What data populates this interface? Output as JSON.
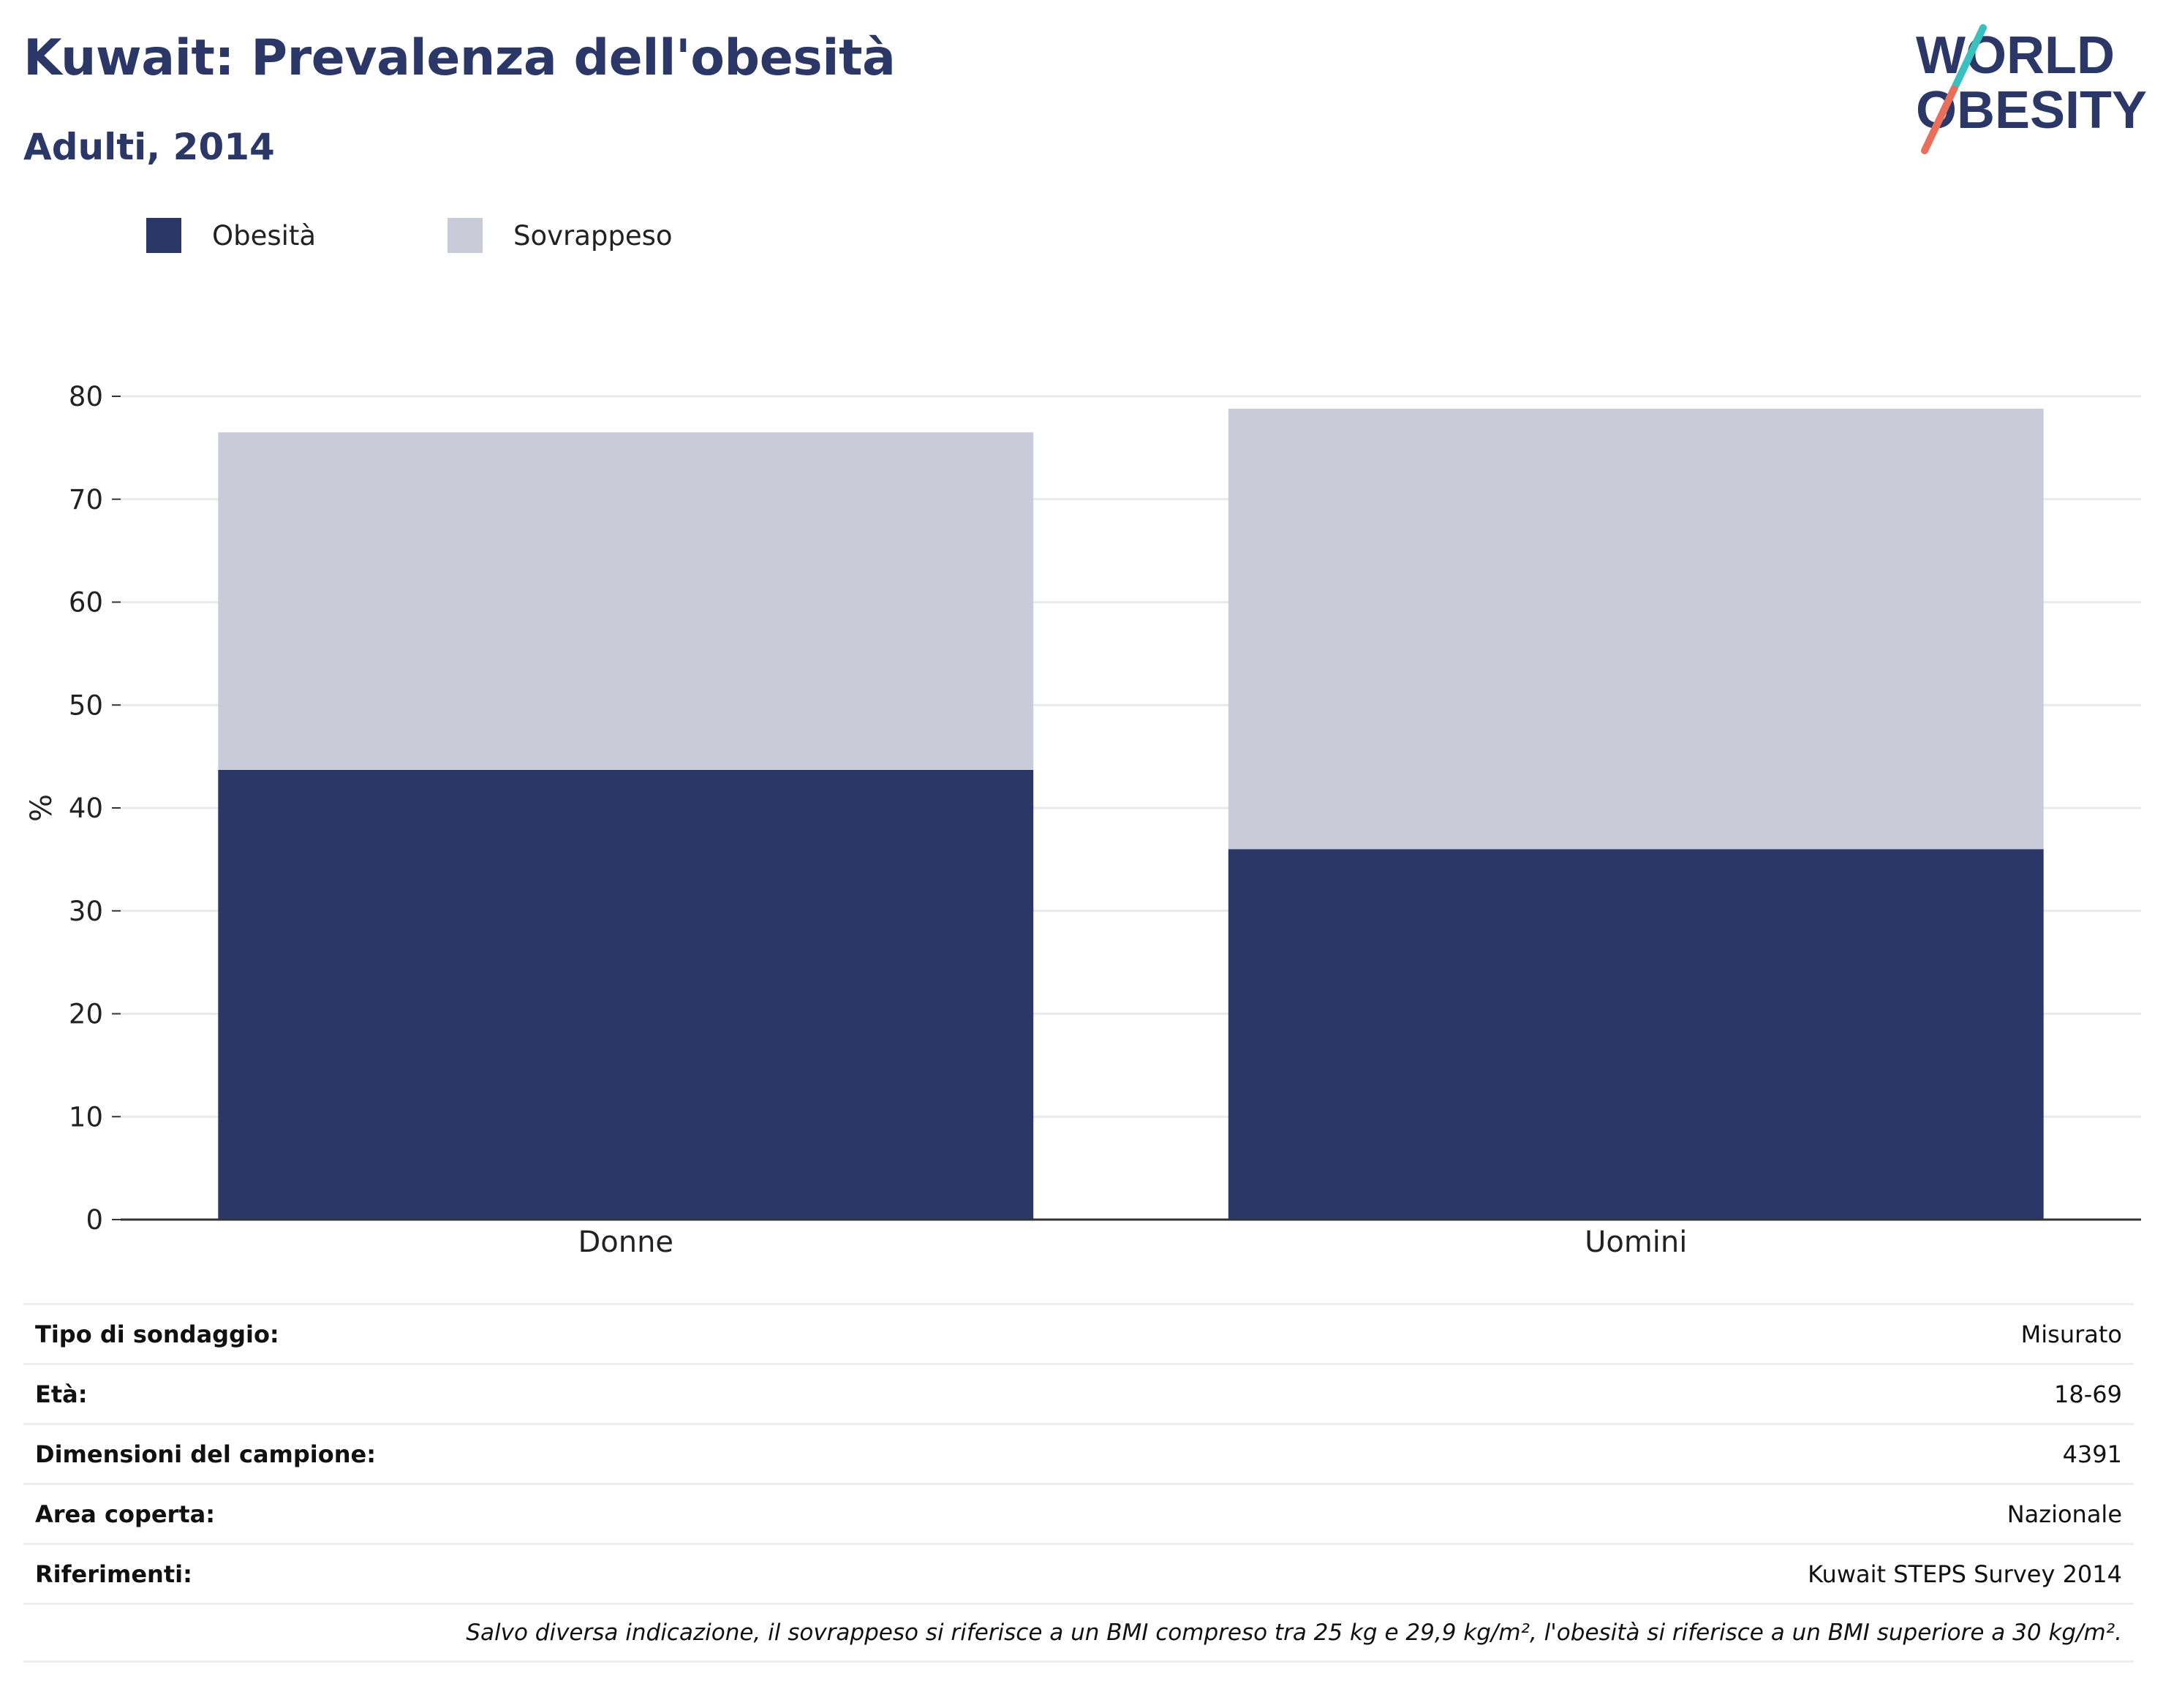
{
  "header": {
    "title": "Kuwait: Prevalenza dell'obesità",
    "subtitle": "Adulti, 2014"
  },
  "logo": {
    "line1": "WORLD",
    "line2": "OBESITY",
    "colors": {
      "text": "#2b3766",
      "slash_top": "#3bbfbf",
      "slash_bottom": "#e8705b"
    }
  },
  "colors": {
    "obesity": "#2b3766",
    "overweight": "#c9ccd8",
    "grid": "#e9e9ee",
    "axis": "#333333"
  },
  "chart_data": {
    "type": "bar",
    "stacked": true,
    "categories": [
      "Donne",
      "Uomini"
    ],
    "series": [
      {
        "name": "Obesità",
        "color": "#2b3766",
        "values": [
          43.7,
          36.0
        ]
      },
      {
        "name": "Sovrappeso",
        "color": "#c9ccd8",
        "values": [
          32.8,
          42.8
        ]
      }
    ],
    "ylabel": "%",
    "ylim": [
      0,
      80
    ],
    "yticks": [
      0,
      10,
      20,
      30,
      40,
      50,
      60,
      70,
      80
    ],
    "grid": true,
    "legend": "top-left"
  },
  "info_table": [
    {
      "label": "Tipo di sondaggio:",
      "value": "Misurato"
    },
    {
      "label": "Età:",
      "value": "18-69"
    },
    {
      "label": "Dimensioni del campione:",
      "value": "4391"
    },
    {
      "label": "Area coperta:",
      "value": "Nazionale"
    },
    {
      "label": "Riferimenti:",
      "value": "Kuwait STEPS Survey 2014"
    }
  ],
  "footnote": "Salvo diversa indicazione, il sovrappeso si riferisce a un BMI compreso tra 25 kg e 29,9 kg/m², l'obesità si riferisce a un BMI superiore a 30 kg/m²."
}
